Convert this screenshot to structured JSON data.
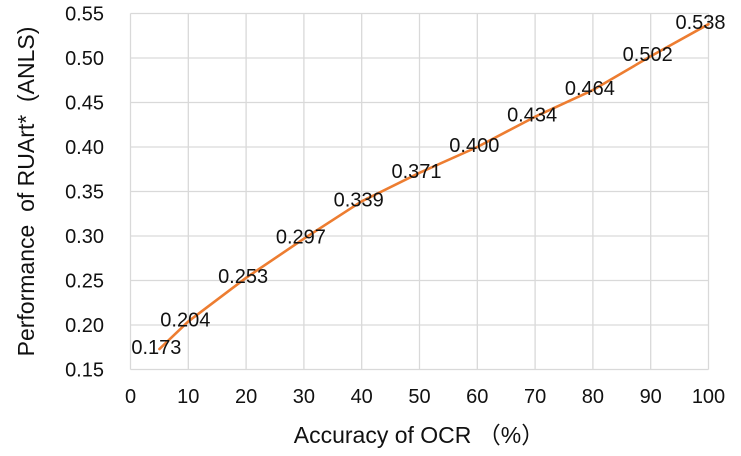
{
  "chart_data": {
    "type": "line",
    "title": "",
    "xlabel": "Accuracy of OCR （%）",
    "ylabel": "Performance  of RUArt*  (ANLS)",
    "x": [
      5,
      10,
      20,
      30,
      40,
      50,
      60,
      70,
      80,
      90,
      100
    ],
    "y": [
      0.173,
      0.204,
      0.253,
      0.297,
      0.339,
      0.371,
      0.4,
      0.434,
      0.464,
      0.502,
      0.538
    ],
    "point_labels": [
      "0.173",
      "0.204",
      "0.253",
      "0.297",
      "0.339",
      "0.371",
      "0.400",
      "0.434",
      "0.464",
      "0.502",
      "0.538"
    ],
    "xlim": [
      0,
      100
    ],
    "ylim": [
      0.15,
      0.55
    ],
    "xticks": [
      0,
      10,
      20,
      30,
      40,
      50,
      60,
      70,
      80,
      90,
      100
    ],
    "xtick_labels": [
      "0",
      "10",
      "20",
      "30",
      "40",
      "50",
      "60",
      "70",
      "80",
      "90",
      "100"
    ],
    "yticks": [
      0.15,
      0.2,
      0.25,
      0.3,
      0.35,
      0.4,
      0.45,
      0.5,
      0.55
    ],
    "ytick_labels": [
      "0.15",
      "0.20",
      "0.25",
      "0.30",
      "0.35",
      "0.40",
      "0.45",
      "0.50",
      "0.55"
    ],
    "grid": true,
    "legend": "none",
    "colors": {
      "line": "#ED7D31",
      "grid": "#D9D9D9",
      "text": "#111111",
      "background": "#FFFFFF"
    }
  }
}
